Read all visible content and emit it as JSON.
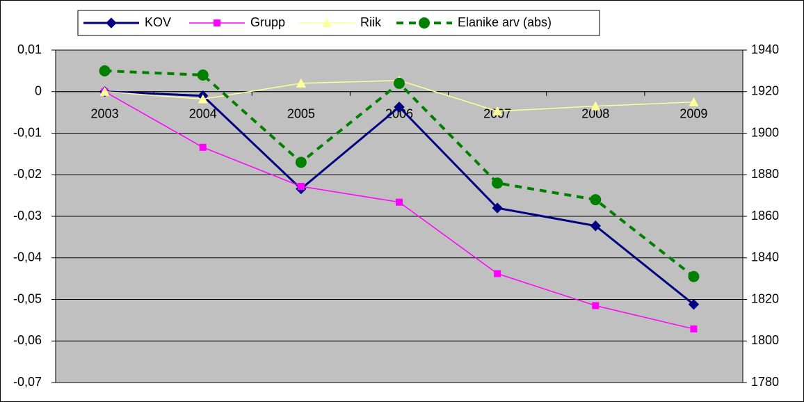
{
  "chart_data": {
    "type": "line",
    "categories": [
      "2003",
      "2004",
      "2005",
      "2006",
      "2007",
      "2008",
      "2009"
    ],
    "series": [
      {
        "name": "KOV",
        "color": "#000080",
        "marker": "diamond",
        "values": [
          0,
          -0.001,
          -0.0234,
          -0.0037,
          -0.028,
          -0.0323,
          -0.0512
        ]
      },
      {
        "name": "Grupp",
        "color": "#ff00ff",
        "marker": "square",
        "values": [
          0,
          -0.0134,
          -0.0228,
          -0.0266,
          -0.0438,
          -0.0515,
          -0.0571
        ]
      },
      {
        "name": "Riik",
        "color": "#ffff99",
        "marker": "triangle",
        "values": [
          0,
          -0.0018,
          0.002,
          0.0027,
          -0.0047,
          -0.0035,
          -0.0025
        ]
      },
      {
        "name": "Elanike arv (abs)",
        "color": "#008000",
        "marker": "circle",
        "dashed": true,
        "axis": "y2",
        "values": [
          1930,
          1928,
          1886,
          1924,
          1876,
          1868,
          1831
        ]
      }
    ],
    "ylim": [
      -0.07,
      0.01
    ],
    "yticks": [
      {
        "value": -0.07,
        "label": "-0,07"
      },
      {
        "value": -0.06,
        "label": "-0,06"
      },
      {
        "value": -0.05,
        "label": "-0,05"
      },
      {
        "value": -0.04,
        "label": "-0,04"
      },
      {
        "value": -0.03,
        "label": "-0,03"
      },
      {
        "value": -0.02,
        "label": "-0,02"
      },
      {
        "value": -0.01,
        "label": "-0,01"
      },
      0,
      {
        "value": 0.01,
        "label": "0,01"
      }
    ],
    "y2lim": [
      1780,
      1940
    ],
    "y2ticks": [
      1780,
      1800,
      1820,
      1840,
      1860,
      1880,
      1900,
      1920,
      1940
    ],
    "grid": true,
    "legend": "top",
    "plot_background": "#c0c0c0"
  }
}
